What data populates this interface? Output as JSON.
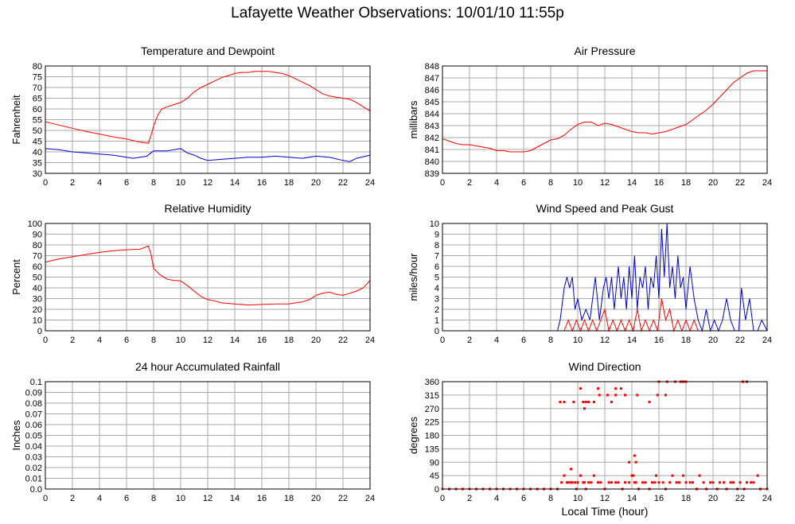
{
  "page_title": "Lafayette Weather Observations: 10/01/10 11:55p",
  "x_axis_label": "Local Time (hour)",
  "colors": {
    "red": "#ff0000",
    "blue": "#0000cc",
    "grid": "#aaaaaa",
    "axis": "#000000"
  },
  "chart_data": [
    {
      "id": "temp",
      "type": "line",
      "title": "Temperature and Dewpoint",
      "ylabel": "Fahrenheit",
      "xlim": [
        0,
        24
      ],
      "ylim": [
        30,
        80
      ],
      "xticks": [
        0,
        2,
        4,
        6,
        8,
        10,
        12,
        14,
        16,
        18,
        20,
        22,
        24
      ],
      "yticks": [
        "30",
        "35",
        "40",
        "45",
        "50",
        "55",
        "60",
        "65",
        "70",
        "75",
        "80"
      ],
      "grid": true,
      "series": [
        {
          "color": "#ff0000",
          "x": [
            0,
            1,
            2,
            3,
            4,
            5,
            6,
            7,
            7.6,
            7.8,
            8,
            8.3,
            8.6,
            9,
            9.5,
            10,
            10.5,
            11,
            11.5,
            12,
            12.5,
            13,
            13.5,
            14,
            14.5,
            15,
            15.5,
            16,
            16.5,
            17,
            17.5,
            18,
            18.5,
            19,
            19.5,
            20,
            20.5,
            21,
            21.5,
            22,
            22.5,
            23,
            23.5,
            24
          ],
          "y": [
            54,
            52.5,
            51,
            49.5,
            48.3,
            47,
            46,
            44.5,
            44,
            47.5,
            52,
            57,
            60,
            61,
            62,
            63,
            65,
            68,
            70,
            71.5,
            73,
            74.5,
            75.5,
            76.5,
            77,
            77,
            77.5,
            77.5,
            77.5,
            77,
            76.5,
            75.5,
            74,
            72.5,
            71,
            69,
            67,
            66,
            65.5,
            65,
            64.5,
            63,
            61,
            59
          ]
        },
        {
          "color": "#0000cc",
          "x": [
            0,
            1,
            2,
            3,
            4,
            5,
            6,
            6.5,
            7,
            7.5,
            7.8,
            8,
            9,
            10,
            10.5,
            11,
            11.5,
            12,
            13,
            14,
            15,
            16,
            17,
            18,
            19,
            20,
            21,
            22,
            22.5,
            23,
            24
          ],
          "y": [
            41.5,
            41,
            40,
            39.5,
            39,
            38.5,
            37.5,
            37,
            37.5,
            38,
            39.5,
            40.5,
            40.5,
            41.5,
            39.5,
            38.5,
            37,
            36,
            36.5,
            37,
            37.5,
            37.5,
            38,
            37.5,
            37,
            38,
            37.5,
            36,
            35.5,
            37,
            38.5
          ]
        }
      ]
    },
    {
      "id": "pressure",
      "type": "line",
      "title": "Air Pressure",
      "ylabel": "millibars",
      "xlim": [
        0,
        24
      ],
      "ylim": [
        839,
        848
      ],
      "xticks": [
        0,
        2,
        4,
        6,
        8,
        10,
        12,
        14,
        16,
        18,
        20,
        22,
        24
      ],
      "yticks": [
        "839",
        "840",
        "841",
        "842",
        "843",
        "844",
        "845",
        "846",
        "847",
        "848"
      ],
      "grid": true,
      "series": [
        {
          "color": "#ff0000",
          "x": [
            0,
            0.5,
            1,
            1.5,
            2,
            2.5,
            3,
            3.5,
            4,
            4.5,
            5,
            5.5,
            6,
            6.5,
            7,
            7.5,
            8,
            8.5,
            9,
            9.5,
            10,
            10.5,
            11,
            11.5,
            12,
            12.5,
            13,
            13.5,
            14,
            14.5,
            15,
            15.5,
            16,
            16.5,
            17,
            17.5,
            18,
            18.5,
            19,
            19.5,
            20,
            20.5,
            21,
            21.5,
            22,
            22.5,
            23,
            23.5,
            24
          ],
          "y": [
            841.9,
            841.7,
            841.5,
            841.4,
            841.4,
            841.3,
            841.2,
            841.1,
            840.9,
            840.9,
            840.8,
            840.8,
            840.8,
            840.9,
            841.2,
            841.5,
            841.8,
            841.9,
            842.2,
            842.7,
            843.1,
            843.3,
            843.3,
            843.0,
            843.2,
            843.1,
            842.9,
            842.7,
            842.5,
            842.4,
            842.4,
            842.3,
            842.4,
            842.5,
            842.7,
            842.9,
            843.1,
            843.5,
            843.9,
            844.3,
            844.8,
            845.4,
            846.0,
            846.6,
            847.0,
            847.4,
            847.6,
            847.6,
            847.6
          ]
        }
      ]
    },
    {
      "id": "humidity",
      "type": "line",
      "title": "Relative Humidity",
      "ylabel": "Percent",
      "xlim": [
        0,
        24
      ],
      "ylim": [
        0,
        100
      ],
      "xticks": [
        0,
        2,
        4,
        6,
        8,
        10,
        12,
        14,
        16,
        18,
        20,
        22,
        24
      ],
      "yticks": [
        "0",
        "10",
        "20",
        "30",
        "40",
        "50",
        "60",
        "70",
        "80",
        "90",
        "100"
      ],
      "grid": true,
      "series": [
        {
          "color": "#ff0000",
          "x": [
            0,
            1,
            2,
            3,
            4,
            5,
            6,
            7,
            7.6,
            7.8,
            8,
            8.5,
            9,
            9.5,
            10,
            10.5,
            11,
            11.5,
            12,
            12.5,
            13,
            14,
            15,
            16,
            17,
            18,
            18.5,
            19,
            19.5,
            20,
            20.5,
            21,
            21.5,
            22,
            22.5,
            23,
            23.5,
            24
          ],
          "y": [
            64,
            67,
            69,
            71,
            73,
            74.5,
            75.5,
            76,
            79,
            72,
            58,
            52,
            48,
            47,
            46.5,
            42,
            37,
            32,
            29,
            28,
            26,
            25,
            24,
            24.5,
            25,
            25,
            26,
            27,
            29,
            33,
            35,
            36,
            34,
            33,
            35,
            37,
            40,
            47
          ]
        }
      ]
    },
    {
      "id": "wind-speed",
      "type": "line",
      "title": "Wind Speed and Peak Gust",
      "ylabel": "miles/hour",
      "xlim": [
        0,
        24
      ],
      "ylim": [
        0,
        10
      ],
      "xticks": [
        0,
        2,
        4,
        6,
        8,
        10,
        12,
        14,
        16,
        18,
        20,
        22,
        24
      ],
      "yticks": [
        "0",
        "1",
        "2",
        "3",
        "4",
        "5",
        "6",
        "7",
        "8",
        "9",
        "10"
      ],
      "grid": true,
      "series": [
        {
          "color": "#0000cc",
          "x": [
            0,
            8.5,
            8.7,
            9.0,
            9.2,
            9.4,
            9.6,
            9.8,
            10.0,
            10.3,
            10.6,
            10.9,
            11.1,
            11.3,
            11.6,
            11.9,
            12.1,
            12.3,
            12.5,
            12.7,
            13.0,
            13.2,
            13.4,
            13.6,
            13.8,
            14.0,
            14.2,
            14.4,
            14.6,
            14.8,
            15.0,
            15.2,
            15.4,
            15.6,
            15.8,
            16.0,
            16.2,
            16.4,
            16.6,
            16.8,
            17.0,
            17.2,
            17.4,
            17.6,
            17.8,
            18.0,
            18.3,
            18.6,
            18.9,
            19.2,
            19.5,
            19.8,
            20.1,
            20.4,
            20.7,
            21.0,
            21.3,
            21.6,
            21.9,
            22.1,
            22.4,
            22.7,
            23.0,
            23.3,
            23.6,
            24
          ],
          "y": [
            0,
            0,
            1,
            4,
            5,
            4,
            5,
            2,
            3,
            1,
            2,
            1,
            3,
            5,
            1,
            4,
            5,
            3,
            5,
            2,
            6,
            3,
            5,
            2,
            6,
            3,
            7,
            2,
            5,
            4,
            6,
            2,
            5,
            4,
            7,
            3,
            9.5,
            5,
            10,
            4,
            6,
            3,
            7,
            4,
            5,
            2,
            6,
            3,
            1,
            0,
            2,
            0,
            1,
            0,
            1,
            3,
            1,
            0,
            0,
            4,
            1,
            3,
            0,
            0,
            1,
            0
          ]
        },
        {
          "color": "#ff0000",
          "x": [
            0,
            9.0,
            9.3,
            9.6,
            9.9,
            10.2,
            10.5,
            10.8,
            11.1,
            11.4,
            11.7,
            12.0,
            12.3,
            12.6,
            12.9,
            13.2,
            13.5,
            13.8,
            14.1,
            14.4,
            14.7,
            15.0,
            15.3,
            15.6,
            15.9,
            16.2,
            16.5,
            16.8,
            17.1,
            17.4,
            17.7,
            18.0,
            18.3,
            18.6,
            18.9,
            19.2,
            24
          ],
          "y": [
            0,
            0,
            1,
            0,
            1,
            0,
            1,
            0,
            1,
            0,
            1,
            2,
            0,
            1,
            0,
            1,
            0,
            1,
            0,
            2,
            0,
            1,
            0,
            1,
            0,
            3,
            1,
            2,
            0,
            1,
            0,
            1,
            0,
            1,
            0,
            0,
            0
          ]
        }
      ]
    },
    {
      "id": "rainfall",
      "type": "line",
      "title": "24 hour Accumulated Rainfall",
      "ylabel": "Inches",
      "xlim": [
        0,
        24
      ],
      "ylim": [
        0,
        0.1
      ],
      "xticks": [
        0,
        2,
        4,
        6,
        8,
        10,
        12,
        14,
        16,
        18,
        20,
        22,
        24
      ],
      "yticks": [
        "0.0",
        "0.01",
        "0.02",
        "0.03",
        "0.04",
        "0.05",
        "0.06",
        "0.07",
        "0.08",
        "0.09",
        "0.1"
      ],
      "grid": true,
      "series": [
        {
          "color": "#ff0000",
          "x": [
            0,
            24
          ],
          "y": [
            0,
            0
          ]
        }
      ]
    },
    {
      "id": "wind-direction",
      "type": "scatter",
      "title": "Wind Direction",
      "ylabel": "degrees",
      "xlim": [
        0,
        24
      ],
      "ylim": [
        0,
        360
      ],
      "xticks": [
        0,
        2,
        4,
        6,
        8,
        10,
        12,
        14,
        16,
        18,
        20,
        22,
        24
      ],
      "yticks": [
        "0",
        "45",
        "90",
        "135",
        "180",
        "225",
        "270",
        "315",
        "360"
      ],
      "grid": true,
      "series": [
        {
          "color": "#ff0000",
          "x": [
            0,
            0.5,
            1,
            1.5,
            2,
            2.5,
            3,
            3.5,
            4,
            4.5,
            5,
            5.5,
            6,
            6.5,
            7,
            7.5,
            8,
            8.5,
            8.8,
            9.0,
            9.2,
            9.3,
            9.5,
            9.6,
            9.8,
            9.9,
            10.0,
            10.2,
            10.4,
            10.5,
            10.6,
            10.8,
            11.0,
            11.2,
            11.5,
            11.7,
            12.0,
            12.3,
            12.5,
            12.8,
            13.0,
            13.3,
            13.5,
            13.8,
            14.0,
            14.1,
            14.2,
            14.3,
            14.5,
            14.8,
            15.0,
            15.3,
            15.5,
            15.8,
            16.0,
            16.3,
            16.5,
            16.8,
            17.0,
            17.3,
            17.5,
            17.8,
            18.0,
            18.3,
            18.5,
            18.8,
            19.0,
            19.3,
            19.5,
            19.8,
            20.0,
            20.3,
            20.5,
            20.8,
            21.0,
            21.3,
            21.5,
            21.8,
            22.0,
            22.3,
            22.5,
            22.8,
            23.0,
            23.3,
            23.5,
            24,
            8.7,
            9.0,
            9.7,
            10.4,
            10.6,
            10.8,
            11.2,
            11.6,
            12.2,
            12.5,
            12.8,
            13.5,
            14.4,
            15.3,
            15.9,
            16.5,
            17.2,
            17.8,
            18.0,
            22.2,
            22.5,
            10.2,
            10.5,
            11.5,
            12.8,
            13.2,
            16.0,
            16.6,
            17.6,
            9.5,
            13.8,
            14.2,
            14.3,
            15.7
          ],
          "y": [
            0,
            0,
            0,
            0,
            0,
            0,
            0,
            0,
            0,
            0,
            0,
            0,
            0,
            0,
            0,
            0,
            0,
            0,
            22,
            45,
            22,
            22,
            22,
            22,
            22,
            0,
            22,
            45,
            22,
            22,
            0,
            22,
            22,
            45,
            22,
            22,
            0,
            22,
            22,
            22,
            22,
            0,
            22,
            22,
            45,
            45,
            22,
            22,
            0,
            22,
            22,
            0,
            22,
            45,
            22,
            22,
            0,
            22,
            45,
            22,
            22,
            45,
            22,
            22,
            22,
            0,
            45,
            22,
            0,
            22,
            22,
            0,
            22,
            22,
            0,
            22,
            22,
            0,
            22,
            0,
            22,
            22,
            22,
            45,
            0,
            0,
            292,
            292,
            292,
            292,
            292,
            292,
            292,
            315,
            315,
            292,
            315,
            315,
            315,
            292,
            315,
            315,
            360,
            360,
            360,
            360,
            360,
            337,
            270,
            337,
            337,
            337,
            360,
            360,
            360,
            67,
            90,
            112,
            90,
            22
          ]
        }
      ]
    }
  ]
}
